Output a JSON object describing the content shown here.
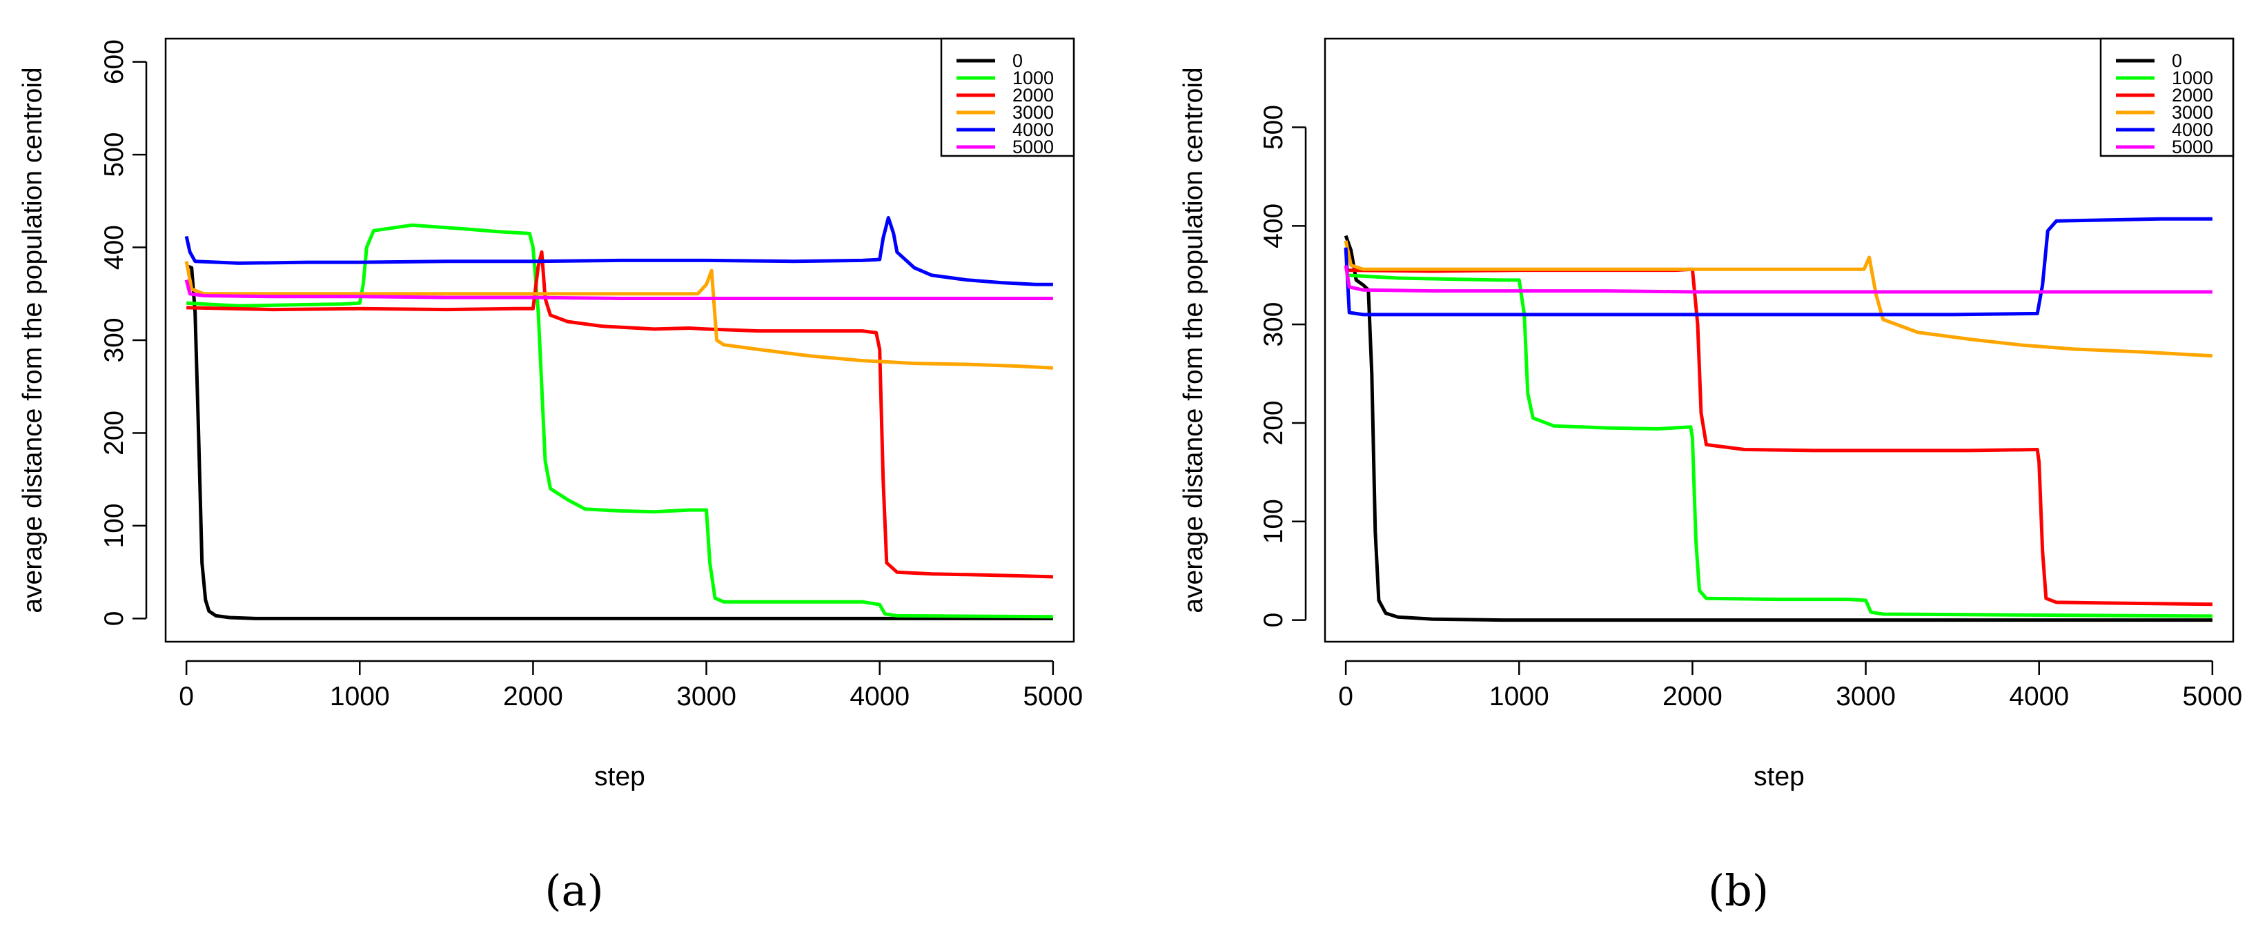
{
  "chart_data": [
    {
      "type": "line",
      "panel_label": "(a)",
      "xlabel": "step",
      "ylabel": "average distance from the population centroid",
      "xlim": [
        -120,
        5120
      ],
      "ylim": [
        -25,
        625
      ],
      "xticks": [
        0,
        1000,
        2000,
        3000,
        4000,
        5000
      ],
      "yticks": [
        0,
        100,
        200,
        300,
        400,
        500,
        600
      ],
      "grid": false,
      "legend_position": "top-right",
      "series": [
        {
          "name": "0",
          "color": "#000000",
          "points": [
            [
              0,
              380
            ],
            [
              30,
              378
            ],
            [
              50,
              330
            ],
            [
              70,
              200
            ],
            [
              90,
              60
            ],
            [
              110,
              20
            ],
            [
              130,
              8
            ],
            [
              170,
              3
            ],
            [
              250,
              1
            ],
            [
              400,
              0
            ],
            [
              5000,
              0
            ]
          ]
        },
        {
          "name": "1000",
          "color": "#00ff00",
          "points": [
            [
              0,
              340
            ],
            [
              300,
              337
            ],
            [
              600,
              338
            ],
            [
              900,
              339
            ],
            [
              1000,
              340
            ],
            [
              1020,
              360
            ],
            [
              1040,
              400
            ],
            [
              1080,
              418
            ],
            [
              1300,
              424
            ],
            [
              1600,
              420
            ],
            [
              1800,
              417
            ],
            [
              1980,
              415
            ],
            [
              2000,
              400
            ],
            [
              2030,
              330
            ],
            [
              2050,
              250
            ],
            [
              2070,
              170
            ],
            [
              2100,
              140
            ],
            [
              2200,
              128
            ],
            [
              2300,
              118
            ],
            [
              2500,
              116
            ],
            [
              2700,
              115
            ],
            [
              2900,
              117
            ],
            [
              3000,
              117
            ],
            [
              3020,
              60
            ],
            [
              3050,
              22
            ],
            [
              3100,
              18
            ],
            [
              3500,
              18
            ],
            [
              3900,
              18
            ],
            [
              4000,
              15
            ],
            [
              4030,
              5
            ],
            [
              4100,
              3
            ],
            [
              5000,
              2
            ]
          ]
        },
        {
          "name": "2000",
          "color": "#ff0000",
          "points": [
            [
              0,
              335
            ],
            [
              500,
              333
            ],
            [
              1000,
              334
            ],
            [
              1500,
              333
            ],
            [
              1900,
              334
            ],
            [
              2000,
              334
            ],
            [
              2030,
              380
            ],
            [
              2050,
              395
            ],
            [
              2070,
              345
            ],
            [
              2100,
              327
            ],
            [
              2200,
              320
            ],
            [
              2400,
              315
            ],
            [
              2700,
              312
            ],
            [
              2900,
              313
            ],
            [
              3000,
              312
            ],
            [
              3300,
              310
            ],
            [
              3600,
              310
            ],
            [
              3900,
              310
            ],
            [
              3980,
              308
            ],
            [
              4000,
              290
            ],
            [
              4020,
              150
            ],
            [
              4040,
              60
            ],
            [
              4100,
              50
            ],
            [
              4300,
              48
            ],
            [
              4600,
              47
            ],
            [
              4800,
              46
            ],
            [
              5000,
              45
            ]
          ]
        },
        {
          "name": "3000",
          "color": "#ffa500",
          "points": [
            [
              0,
              385
            ],
            [
              30,
              355
            ],
            [
              100,
              350
            ],
            [
              500,
              350
            ],
            [
              1000,
              350
            ],
            [
              1500,
              350
            ],
            [
              2000,
              350
            ],
            [
              2500,
              350
            ],
            [
              2950,
              350
            ],
            [
              3000,
              360
            ],
            [
              3030,
              375
            ],
            [
              3060,
              300
            ],
            [
              3100,
              295
            ],
            [
              3300,
              290
            ],
            [
              3600,
              283
            ],
            [
              3900,
              278
            ],
            [
              4200,
              275
            ],
            [
              4500,
              274
            ],
            [
              4800,
              272
            ],
            [
              5000,
              270
            ]
          ]
        },
        {
          "name": "4000",
          "color": "#0000ff",
          "points": [
            [
              0,
              412
            ],
            [
              20,
              395
            ],
            [
              50,
              385
            ],
            [
              300,
              383
            ],
            [
              700,
              384
            ],
            [
              1000,
              384
            ],
            [
              1500,
              385
            ],
            [
              2000,
              385
            ],
            [
              2500,
              386
            ],
            [
              3000,
              386
            ],
            [
              3500,
              385
            ],
            [
              3900,
              386
            ],
            [
              4000,
              387
            ],
            [
              4020,
              410
            ],
            [
              4050,
              432
            ],
            [
              4080,
              415
            ],
            [
              4100,
              395
            ],
            [
              4200,
              378
            ],
            [
              4300,
              370
            ],
            [
              4500,
              365
            ],
            [
              4700,
              362
            ],
            [
              4900,
              360
            ],
            [
              5000,
              360
            ]
          ]
        },
        {
          "name": "5000",
          "color": "#ff00ff",
          "points": [
            [
              0,
              365
            ],
            [
              20,
              350
            ],
            [
              100,
              348
            ],
            [
              500,
              347
            ],
            [
              1000,
              347
            ],
            [
              1500,
              346
            ],
            [
              2000,
              346
            ],
            [
              2500,
              345
            ],
            [
              3000,
              345
            ],
            [
              3500,
              345
            ],
            [
              4000,
              345
            ],
            [
              4500,
              345
            ],
            [
              5000,
              345
            ]
          ]
        }
      ]
    },
    {
      "type": "line",
      "panel_label": "(b)",
      "xlabel": "step",
      "ylabel": "average distance from the population centroid",
      "xlim": [
        -120,
        5120
      ],
      "ylim": [
        -22,
        590
      ],
      "xticks": [
        0,
        1000,
        2000,
        3000,
        4000,
        5000
      ],
      "yticks": [
        0,
        100,
        200,
        300,
        400,
        500
      ],
      "grid": false,
      "legend_position": "top-right",
      "series": [
        {
          "name": "0",
          "color": "#000000",
          "points": [
            [
              0,
              390
            ],
            [
              30,
              375
            ],
            [
              60,
              345
            ],
            [
              100,
              340
            ],
            [
              130,
              335
            ],
            [
              150,
              250
            ],
            [
              170,
              90
            ],
            [
              190,
              20
            ],
            [
              230,
              7
            ],
            [
              300,
              3
            ],
            [
              500,
              1
            ],
            [
              900,
              0
            ],
            [
              5000,
              0
            ]
          ]
        },
        {
          "name": "1000",
          "color": "#00ff00",
          "points": [
            [
              0,
              350
            ],
            [
              300,
              347
            ],
            [
              600,
              346
            ],
            [
              900,
              345
            ],
            [
              1000,
              345
            ],
            [
              1030,
              310
            ],
            [
              1050,
              230
            ],
            [
              1080,
              205
            ],
            [
              1200,
              197
            ],
            [
              1500,
              195
            ],
            [
              1800,
              194
            ],
            [
              1990,
              196
            ],
            [
              2000,
              185
            ],
            [
              2020,
              80
            ],
            [
              2040,
              30
            ],
            [
              2080,
              22
            ],
            [
              2500,
              21
            ],
            [
              2900,
              21
            ],
            [
              3000,
              20
            ],
            [
              3030,
              8
            ],
            [
              3100,
              6
            ],
            [
              4000,
              5
            ],
            [
              5000,
              4
            ]
          ]
        },
        {
          "name": "2000",
          "color": "#ff0000",
          "points": [
            [
              0,
              355
            ],
            [
              500,
              354
            ],
            [
              1000,
              355
            ],
            [
              1500,
              355
            ],
            [
              1900,
              355
            ],
            [
              2000,
              356
            ],
            [
              2030,
              300
            ],
            [
              2050,
              210
            ],
            [
              2080,
              178
            ],
            [
              2300,
              173
            ],
            [
              2700,
              172
            ],
            [
              3100,
              172
            ],
            [
              3600,
              172
            ],
            [
              3990,
              173
            ],
            [
              4000,
              160
            ],
            [
              4020,
              70
            ],
            [
              4040,
              22
            ],
            [
              4100,
              18
            ],
            [
              4500,
              17
            ],
            [
              5000,
              16
            ]
          ]
        },
        {
          "name": "3000",
          "color": "#ffa500",
          "points": [
            [
              0,
              385
            ],
            [
              30,
              360
            ],
            [
              100,
              356
            ],
            [
              500,
              356
            ],
            [
              1000,
              356
            ],
            [
              1500,
              356
            ],
            [
              2000,
              356
            ],
            [
              2500,
              356
            ],
            [
              2990,
              356
            ],
            [
              3020,
              368
            ],
            [
              3060,
              330
            ],
            [
              3100,
              305
            ],
            [
              3300,
              292
            ],
            [
              3600,
              285
            ],
            [
              3900,
              279
            ],
            [
              4200,
              275
            ],
            [
              4600,
              272
            ],
            [
              5000,
              268
            ]
          ]
        },
        {
          "name": "4000",
          "color": "#0000ff",
          "points": [
            [
              0,
              378
            ],
            [
              20,
              312
            ],
            [
              100,
              310
            ],
            [
              500,
              310
            ],
            [
              1000,
              310
            ],
            [
              1500,
              310
            ],
            [
              2000,
              310
            ],
            [
              2500,
              310
            ],
            [
              3000,
              310
            ],
            [
              3500,
              310
            ],
            [
              3990,
              311
            ],
            [
              4020,
              340
            ],
            [
              4050,
              395
            ],
            [
              4100,
              405
            ],
            [
              4400,
              406
            ],
            [
              4700,
              407
            ],
            [
              5000,
              407
            ]
          ]
        },
        {
          "name": "5000",
          "color": "#ff00ff",
          "points": [
            [
              0,
              360
            ],
            [
              20,
              338
            ],
            [
              100,
              335
            ],
            [
              500,
              334
            ],
            [
              1000,
              334
            ],
            [
              1500,
              334
            ],
            [
              2000,
              333
            ],
            [
              2500,
              333
            ],
            [
              3000,
              333
            ],
            [
              3500,
              333
            ],
            [
              4000,
              333
            ],
            [
              4500,
              333
            ],
            [
              5000,
              333
            ]
          ]
        }
      ]
    }
  ]
}
